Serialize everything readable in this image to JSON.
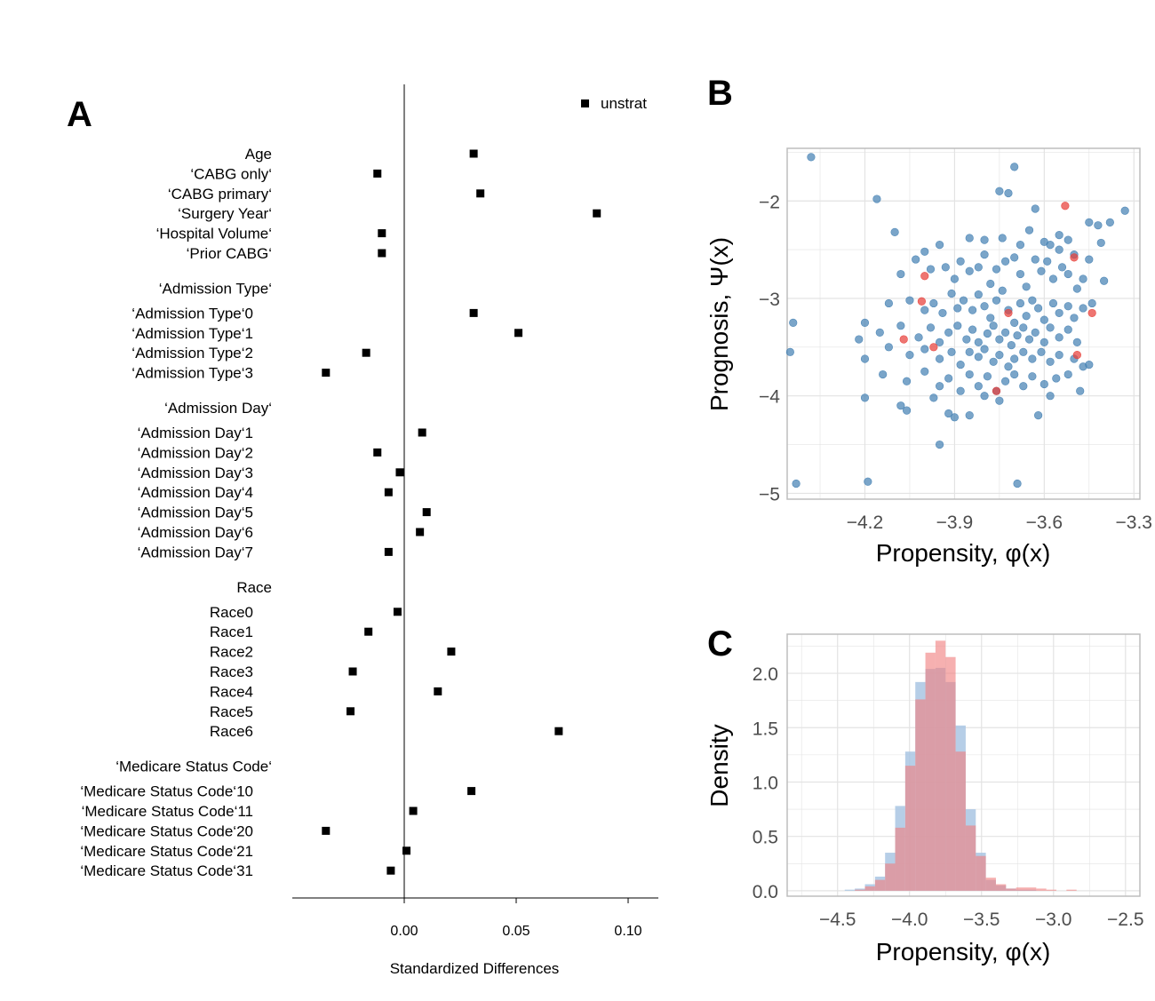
{
  "colors": {
    "ink": "#000000",
    "blue_points": "#4682b4",
    "red_points": "#e8403a",
    "hist_blue": "#a9c6e3",
    "hist_red": "#f08080",
    "grid": "#e3e3e3",
    "panel_border": "#bdbdbd"
  },
  "chart_data": [
    {
      "panel": "A",
      "type": "scatter",
      "xlabel": "Standardized Differences",
      "legend": {
        "label": "unstrat",
        "marker": "square",
        "position": "top-right"
      },
      "x_ticks": [
        0.0,
        0.05,
        0.1
      ],
      "x_tick_labels": [
        "0.00",
        "0.05",
        "0.10"
      ],
      "reference_line_x": 0,
      "groups": [
        {
          "header": "",
          "items": [
            {
              "label": "Age",
              "value": 0.031
            },
            {
              "label": "‘CABG only‘",
              "value": -0.012
            },
            {
              "label": "‘CABG primary‘",
              "value": 0.034
            },
            {
              "label": "‘Surgery Year‘",
              "value": 0.086
            },
            {
              "label": "‘Hospital Volume‘",
              "value": -0.01
            },
            {
              "label": "‘Prior CABG‘",
              "value": -0.01
            }
          ]
        },
        {
          "header": "‘Admission Type‘",
          "items": [
            {
              "label": "‘Admission Type‘0",
              "value": 0.031
            },
            {
              "label": "‘Admission Type‘1",
              "value": 0.051
            },
            {
              "label": "‘Admission Type‘2",
              "value": -0.017
            },
            {
              "label": "‘Admission Type‘3",
              "value": -0.035
            }
          ]
        },
        {
          "header": "‘Admission Day‘",
          "items": [
            {
              "label": "‘Admission Day‘1",
              "value": 0.008
            },
            {
              "label": "‘Admission Day‘2",
              "value": -0.012
            },
            {
              "label": "‘Admission Day‘3",
              "value": -0.002
            },
            {
              "label": "‘Admission Day‘4",
              "value": -0.007
            },
            {
              "label": "‘Admission Day‘5",
              "value": 0.01
            },
            {
              "label": "‘Admission Day‘6",
              "value": 0.007
            },
            {
              "label": "‘Admission Day‘7",
              "value": -0.007
            }
          ]
        },
        {
          "header": "Race",
          "items": [
            {
              "label": "Race0",
              "value": -0.003
            },
            {
              "label": "Race1",
              "value": -0.016
            },
            {
              "label": "Race2",
              "value": 0.021
            },
            {
              "label": "Race3",
              "value": -0.023
            },
            {
              "label": "Race4",
              "value": 0.015
            },
            {
              "label": "Race5",
              "value": -0.024
            },
            {
              "label": "Race6",
              "value": 0.069
            }
          ]
        },
        {
          "header": "‘Medicare Status Code‘",
          "items": [
            {
              "label": "‘Medicare Status Code‘10",
              "value": 0.03
            },
            {
              "label": "‘Medicare Status Code‘11",
              "value": 0.004
            },
            {
              "label": "‘Medicare Status Code‘20",
              "value": -0.035
            },
            {
              "label": "‘Medicare Status Code‘21",
              "value": 0.001
            },
            {
              "label": "‘Medicare Status Code‘31",
              "value": -0.006
            }
          ]
        }
      ]
    },
    {
      "panel": "B",
      "type": "scatter",
      "xlabel": "Propensity, φ(x)",
      "ylabel": "Prognosis, Ψ(x)",
      "xlim": [
        -4.46,
        -3.28
      ],
      "ylim": [
        -5.06,
        -1.46
      ],
      "x_ticks": [
        -4.2,
        -3.9,
        -3.6,
        -3.3
      ],
      "x_tick_labels": [
        "−4.2",
        "−3.9",
        "−3.6",
        "−3.3"
      ],
      "y_ticks": [
        -5,
        -4,
        -3,
        -2
      ],
      "y_tick_labels": [
        "−5",
        "−4",
        "−3",
        "−2"
      ],
      "grid": true,
      "series": [
        {
          "color": "blue",
          "points": [
            [
              -4.38,
              -1.55
            ],
            [
              -3.7,
              -1.65
            ],
            [
              -3.75,
              -1.9
            ],
            [
              -3.72,
              -1.92
            ],
            [
              -4.16,
              -1.98
            ],
            [
              -3.63,
              -2.08
            ],
            [
              -3.33,
              -2.1
            ],
            [
              -4.1,
              -2.32
            ],
            [
              -3.42,
              -2.25
            ],
            [
              -3.45,
              -2.22
            ],
            [
              -3.38,
              -2.22
            ],
            [
              -3.55,
              -2.35
            ],
            [
              -3.52,
              -2.4
            ],
            [
              -3.58,
              -2.45
            ],
            [
              -4.0,
              -2.52
            ],
            [
              -3.95,
              -2.45
            ],
            [
              -3.85,
              -2.38
            ],
            [
              -3.8,
              -2.4
            ],
            [
              -3.74,
              -2.38
            ],
            [
              -3.68,
              -2.45
            ],
            [
              -3.65,
              -2.3
            ],
            [
              -3.6,
              -2.42
            ],
            [
              -3.55,
              -2.5
            ],
            [
              -3.5,
              -2.55
            ],
            [
              -3.45,
              -2.6
            ],
            [
              -3.41,
              -2.43
            ],
            [
              -4.08,
              -2.75
            ],
            [
              -4.03,
              -2.6
            ],
            [
              -3.98,
              -2.7
            ],
            [
              -3.93,
              -2.68
            ],
            [
              -3.9,
              -2.8
            ],
            [
              -3.88,
              -2.62
            ],
            [
              -3.85,
              -2.72
            ],
            [
              -3.82,
              -2.68
            ],
            [
              -3.8,
              -2.55
            ],
            [
              -3.78,
              -2.85
            ],
            [
              -3.76,
              -2.7
            ],
            [
              -3.73,
              -2.62
            ],
            [
              -3.7,
              -2.58
            ],
            [
              -3.68,
              -2.75
            ],
            [
              -3.66,
              -2.88
            ],
            [
              -3.63,
              -2.6
            ],
            [
              -3.61,
              -2.72
            ],
            [
              -3.59,
              -2.62
            ],
            [
              -3.57,
              -2.8
            ],
            [
              -3.54,
              -2.68
            ],
            [
              -3.52,
              -2.75
            ],
            [
              -3.49,
              -2.9
            ],
            [
              -3.47,
              -2.8
            ],
            [
              -3.4,
              -2.82
            ],
            [
              -4.12,
              -3.05
            ],
            [
              -4.05,
              -3.02
            ],
            [
              -4.0,
              -3.12
            ],
            [
              -3.97,
              -3.05
            ],
            [
              -3.94,
              -3.15
            ],
            [
              -3.91,
              -2.95
            ],
            [
              -3.89,
              -3.1
            ],
            [
              -3.87,
              -3.02
            ],
            [
              -3.84,
              -3.12
            ],
            [
              -3.82,
              -2.96
            ],
            [
              -3.8,
              -3.08
            ],
            [
              -3.78,
              -3.2
            ],
            [
              -3.76,
              -3.02
            ],
            [
              -3.74,
              -2.92
            ],
            [
              -3.72,
              -3.12
            ],
            [
              -3.7,
              -3.25
            ],
            [
              -3.68,
              -3.05
            ],
            [
              -3.66,
              -3.18
            ],
            [
              -3.64,
              -3.02
            ],
            [
              -3.62,
              -3.1
            ],
            [
              -3.6,
              -3.22
            ],
            [
              -3.57,
              -3.05
            ],
            [
              -3.55,
              -3.15
            ],
            [
              -3.52,
              -3.08
            ],
            [
              -3.5,
              -3.2
            ],
            [
              -3.47,
              -3.1
            ],
            [
              -3.44,
              -3.05
            ],
            [
              -4.2,
              -3.25
            ],
            [
              -4.15,
              -3.35
            ],
            [
              -4.08,
              -3.28
            ],
            [
              -4.02,
              -3.4
            ],
            [
              -3.98,
              -3.3
            ],
            [
              -3.95,
              -3.45
            ],
            [
              -3.92,
              -3.35
            ],
            [
              -3.89,
              -3.28
            ],
            [
              -3.86,
              -3.42
            ],
            [
              -3.84,
              -3.32
            ],
            [
              -3.82,
              -3.45
            ],
            [
              -3.79,
              -3.36
            ],
            [
              -3.77,
              -3.28
            ],
            [
              -3.75,
              -3.42
            ],
            [
              -3.73,
              -3.35
            ],
            [
              -3.71,
              -3.48
            ],
            [
              -3.69,
              -3.38
            ],
            [
              -3.67,
              -3.3
            ],
            [
              -3.65,
              -3.42
            ],
            [
              -3.63,
              -3.35
            ],
            [
              -3.6,
              -3.45
            ],
            [
              -3.58,
              -3.3
            ],
            [
              -3.55,
              -3.4
            ],
            [
              -3.52,
              -3.32
            ],
            [
              -3.49,
              -3.45
            ],
            [
              -4.44,
              -3.25
            ],
            [
              -4.45,
              -3.55
            ],
            [
              -4.22,
              -3.42
            ],
            [
              -4.12,
              -3.5
            ],
            [
              -4.05,
              -3.58
            ],
            [
              -4.0,
              -3.52
            ],
            [
              -3.95,
              -3.62
            ],
            [
              -3.91,
              -3.55
            ],
            [
              -3.88,
              -3.68
            ],
            [
              -3.85,
              -3.55
            ],
            [
              -3.82,
              -3.6
            ],
            [
              -3.8,
              -3.52
            ],
            [
              -3.77,
              -3.65
            ],
            [
              -3.75,
              -3.58
            ],
            [
              -3.72,
              -3.7
            ],
            [
              -3.7,
              -3.62
            ],
            [
              -3.67,
              -3.55
            ],
            [
              -3.64,
              -3.62
            ],
            [
              -3.61,
              -3.55
            ],
            [
              -3.58,
              -3.65
            ],
            [
              -3.55,
              -3.58
            ],
            [
              -3.5,
              -3.62
            ],
            [
              -3.47,
              -3.7
            ],
            [
              -3.45,
              -3.68
            ],
            [
              -4.2,
              -3.62
            ],
            [
              -4.14,
              -3.78
            ],
            [
              -4.06,
              -3.85
            ],
            [
              -4.0,
              -3.75
            ],
            [
              -3.95,
              -3.9
            ],
            [
              -3.92,
              -3.82
            ],
            [
              -3.88,
              -3.95
            ],
            [
              -3.85,
              -3.78
            ],
            [
              -3.82,
              -3.9
            ],
            [
              -3.79,
              -3.8
            ],
            [
              -3.76,
              -3.95
            ],
            [
              -3.73,
              -3.85
            ],
            [
              -3.7,
              -3.78
            ],
            [
              -3.67,
              -3.9
            ],
            [
              -3.64,
              -3.8
            ],
            [
              -3.6,
              -3.88
            ],
            [
              -3.56,
              -3.82
            ],
            [
              -3.52,
              -3.78
            ],
            [
              -3.48,
              -3.95
            ],
            [
              -4.2,
              -4.02
            ],
            [
              -4.08,
              -4.1
            ],
            [
              -4.06,
              -4.15
            ],
            [
              -3.97,
              -4.02
            ],
            [
              -3.92,
              -4.18
            ],
            [
              -3.9,
              -4.22
            ],
            [
              -3.85,
              -4.2
            ],
            [
              -3.8,
              -4.0
            ],
            [
              -3.75,
              -4.05
            ],
            [
              -3.62,
              -4.2
            ],
            [
              -3.58,
              -4.0
            ],
            [
              -3.95,
              -4.5
            ],
            [
              -4.19,
              -4.88
            ],
            [
              -4.43,
              -4.9
            ],
            [
              -3.69,
              -4.9
            ]
          ]
        },
        {
          "color": "red",
          "points": [
            [
              -3.53,
              -2.05
            ],
            [
              -3.5,
              -2.58
            ],
            [
              -4.0,
              -2.77
            ],
            [
              -4.01,
              -3.03
            ],
            [
              -3.72,
              -3.15
            ],
            [
              -3.44,
              -3.15
            ],
            [
              -4.07,
              -3.42
            ],
            [
              -3.97,
              -3.5
            ],
            [
              -3.49,
              -3.58
            ],
            [
              -3.76,
              -3.95
            ]
          ]
        }
      ]
    },
    {
      "panel": "C",
      "type": "histogram",
      "xlabel": "Propensity, φ(x)",
      "ylabel": "Density",
      "xlim": [
        -4.85,
        -2.4
      ],
      "ylim": [
        -0.05,
        2.36
      ],
      "x_ticks": [
        -4.5,
        -4.0,
        -3.5,
        -3.0,
        -2.5
      ],
      "x_tick_labels": [
        "−4.5",
        "−4.0",
        "−3.5",
        "−3.0",
        "−2.5"
      ],
      "y_ticks": [
        0.0,
        0.5,
        1.0,
        1.5,
        2.0
      ],
      "y_tick_labels": [
        "0.0",
        "0.5",
        "1.0",
        "1.5",
        "2.0"
      ],
      "grid": true,
      "bin_start": -4.45,
      "bin_width": 0.07,
      "series": [
        {
          "color": "blue",
          "values": [
            0.01,
            0.02,
            0.06,
            0.13,
            0.35,
            0.78,
            1.28,
            1.92,
            2.04,
            2.05,
            1.92,
            1.52,
            0.75,
            0.35,
            0.1,
            0.05,
            0.02,
            0.01,
            0.01,
            0.0,
            0.0,
            0.0,
            0.0
          ]
        },
        {
          "color": "red",
          "values": [
            0.0,
            0.01,
            0.04,
            0.1,
            0.25,
            0.58,
            1.15,
            1.76,
            2.19,
            2.3,
            2.15,
            1.28,
            0.6,
            0.32,
            0.12,
            0.06,
            0.02,
            0.03,
            0.03,
            0.02,
            0.01,
            0.0,
            0.01
          ]
        }
      ]
    }
  ]
}
